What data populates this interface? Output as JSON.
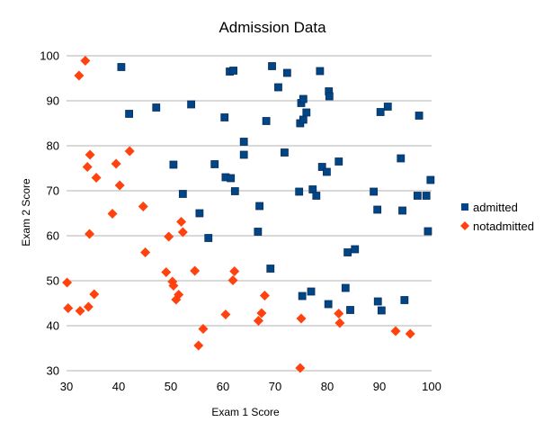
{
  "chart_data": {
    "type": "scatter",
    "title": "Admission Data",
    "xlabel": "Exam 1 Score",
    "ylabel": "Exam 2 Score",
    "xlim": [
      30,
      100
    ],
    "ylim": [
      30,
      100
    ],
    "xticks": [
      30,
      40,
      50,
      60,
      70,
      80,
      90,
      100
    ],
    "yticks": [
      30,
      40,
      50,
      60,
      70,
      80,
      90,
      100
    ],
    "grid": "horizontal",
    "legend_position": "right",
    "series": [
      {
        "name": "admitted",
        "marker": "square",
        "color": "#004586",
        "points": [
          [
            40.5,
            97.5
          ],
          [
            42.0,
            87.1
          ],
          [
            47.2,
            88.5
          ],
          [
            50.5,
            75.8
          ],
          [
            52.3,
            69.3
          ],
          [
            53.9,
            89.2
          ],
          [
            55.5,
            65.0
          ],
          [
            57.2,
            59.5
          ],
          [
            58.4,
            75.9
          ],
          [
            60.3,
            86.3
          ],
          [
            60.5,
            73.0
          ],
          [
            61.3,
            96.5
          ],
          [
            61.5,
            72.8
          ],
          [
            62.0,
            96.7
          ],
          [
            62.3,
            69.9
          ],
          [
            64.0,
            80.9
          ],
          [
            64.0,
            78.0
          ],
          [
            66.7,
            60.9
          ],
          [
            67.0,
            66.6
          ],
          [
            68.3,
            85.5
          ],
          [
            69.1,
            52.7
          ],
          [
            69.4,
            97.7
          ],
          [
            70.6,
            93.0
          ],
          [
            71.8,
            78.5
          ],
          [
            72.3,
            96.2
          ],
          [
            74.6,
            69.8
          ],
          [
            74.8,
            85.0
          ],
          [
            75.0,
            89.5
          ],
          [
            75.2,
            46.6
          ],
          [
            75.4,
            85.8
          ],
          [
            75.4,
            90.4
          ],
          [
            76.0,
            87.4
          ],
          [
            76.9,
            47.6
          ],
          [
            77.2,
            70.3
          ],
          [
            77.9,
            68.9
          ],
          [
            78.6,
            96.6
          ],
          [
            79.0,
            75.3
          ],
          [
            79.9,
            74.2
          ],
          [
            80.2,
            44.8
          ],
          [
            80.3,
            92.1
          ],
          [
            80.4,
            91.0
          ],
          [
            82.2,
            76.5
          ],
          [
            83.5,
            48.4
          ],
          [
            83.9,
            56.3
          ],
          [
            84.4,
            43.5
          ],
          [
            85.3,
            57.0
          ],
          [
            88.9,
            69.8
          ],
          [
            89.6,
            65.8
          ],
          [
            89.7,
            45.4
          ],
          [
            90.2,
            87.5
          ],
          [
            90.4,
            43.4
          ],
          [
            91.6,
            88.7
          ],
          [
            94.1,
            77.2
          ],
          [
            94.4,
            65.6
          ],
          [
            94.8,
            45.7
          ],
          [
            97.3,
            68.9
          ],
          [
            97.6,
            86.7
          ],
          [
            99.0,
            68.9
          ],
          [
            99.3,
            61.0
          ],
          [
            99.8,
            72.4
          ]
        ]
      },
      {
        "name": "notadmitted",
        "marker": "diamond",
        "color": "#ff420e",
        "points": [
          [
            30.1,
            49.6
          ],
          [
            30.3,
            43.9
          ],
          [
            32.4,
            95.6
          ],
          [
            32.6,
            43.3
          ],
          [
            33.6,
            98.9
          ],
          [
            34.0,
            75.3
          ],
          [
            34.2,
            44.2
          ],
          [
            34.4,
            60.4
          ],
          [
            34.5,
            78.0
          ],
          [
            35.3,
            47.0
          ],
          [
            35.7,
            72.9
          ],
          [
            38.8,
            64.9
          ],
          [
            39.5,
            76.0
          ],
          [
            40.2,
            71.2
          ],
          [
            42.1,
            78.8
          ],
          [
            44.7,
            66.5
          ],
          [
            45.1,
            56.3
          ],
          [
            49.1,
            51.9
          ],
          [
            49.6,
            59.8
          ],
          [
            50.3,
            49.8
          ],
          [
            50.5,
            48.9
          ],
          [
            51.0,
            45.8
          ],
          [
            51.5,
            46.9
          ],
          [
            52.0,
            63.1
          ],
          [
            52.3,
            60.8
          ],
          [
            54.6,
            52.2
          ],
          [
            55.3,
            35.6
          ],
          [
            56.2,
            39.3
          ],
          [
            60.5,
            42.5
          ],
          [
            61.9,
            50.1
          ],
          [
            62.2,
            52.1
          ],
          [
            66.8,
            41.1
          ],
          [
            67.4,
            42.8
          ],
          [
            68.0,
            46.7
          ],
          [
            74.8,
            30.6
          ],
          [
            75.0,
            41.6
          ],
          [
            82.2,
            42.7
          ],
          [
            82.4,
            40.6
          ],
          [
            93.1,
            38.8
          ],
          [
            95.9,
            38.2
          ]
        ]
      }
    ]
  }
}
